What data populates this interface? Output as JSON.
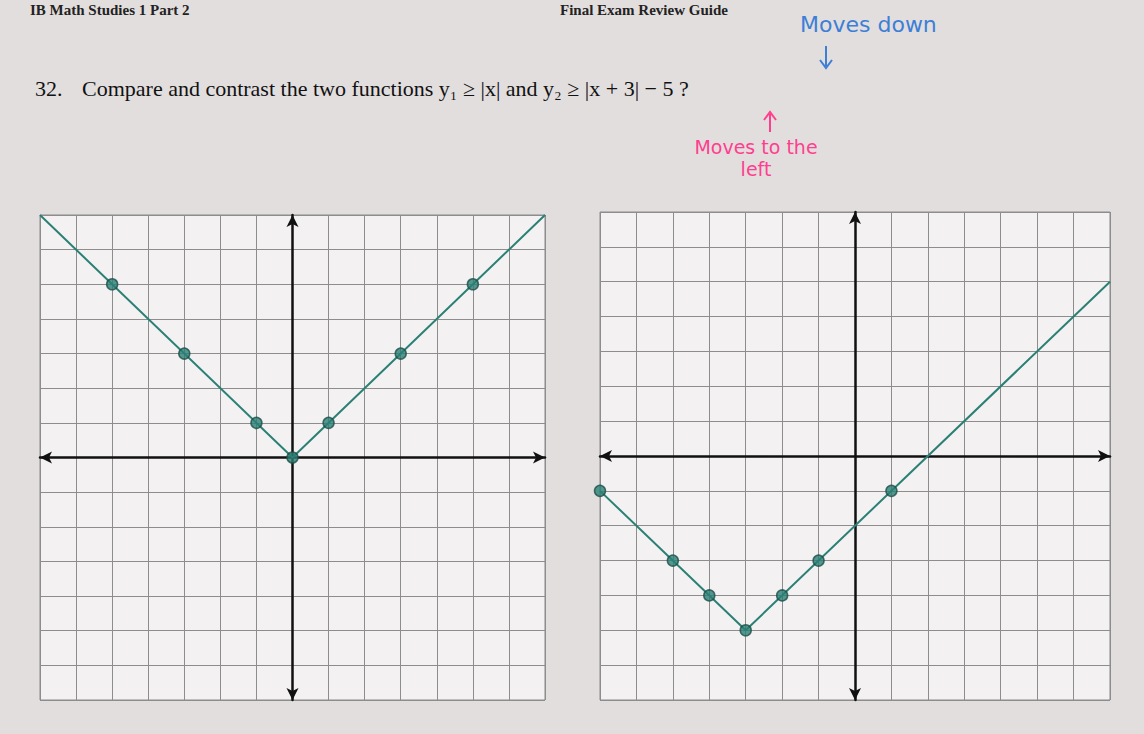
{
  "header": {
    "left": "IB Math Studies 1 Part 2",
    "right": "Final Exam Review Guide"
  },
  "question": {
    "number": "32.",
    "text": "Compare and contrast the two functions y₁ ≥ |x| and y₂ ≥ |x + 3| − 5 ?"
  },
  "annotations": [
    {
      "text": "Moves down",
      "color": "#3d7fd6"
    },
    {
      "text": "Moves to the left",
      "color": "#ff3f8e"
    }
  ],
  "chart_data": [
    {
      "type": "line",
      "xlim": [
        -7,
        7
      ],
      "ylim": [
        -7,
        7
      ],
      "xticks": [
        -7,
        -6,
        -5,
        -4,
        -3,
        -2,
        -1,
        0,
        1,
        2,
        3,
        4,
        5,
        6,
        7
      ],
      "yticks": [
        -7,
        -6,
        -5,
        -4,
        -3,
        -2,
        -1,
        0,
        1,
        2,
        3,
        4,
        5,
        6,
        7
      ],
      "grid": true,
      "tick_labels": false,
      "series": [
        {
          "type": "line",
          "color": "#2b8075",
          "line_style": "solid",
          "x": [
            -7,
            0,
            7
          ],
          "values": [
            7,
            0,
            7
          ]
        },
        {
          "type": "scatter",
          "color": "#2b8075",
          "marker": "circle",
          "x": [
            -5,
            -3,
            -1,
            0,
            1,
            3,
            5
          ],
          "values": [
            5,
            3,
            1,
            0,
            1,
            3,
            5
          ]
        }
      ]
    },
    {
      "type": "line",
      "xlim": [
        -7,
        7
      ],
      "ylim": [
        -7,
        7
      ],
      "xticks": [
        -7,
        -6,
        -5,
        -4,
        -3,
        -2,
        -1,
        0,
        1,
        2,
        3,
        4,
        5,
        6,
        7
      ],
      "yticks": [
        -7,
        -6,
        -5,
        -4,
        -3,
        -2,
        -1,
        0,
        1,
        2,
        3,
        4,
        5,
        6,
        7
      ],
      "grid": true,
      "tick_labels": false,
      "series": [
        {
          "type": "line",
          "color": "#2b8075",
          "line_style": "solid",
          "x": [
            -7,
            -3,
            7
          ],
          "values": [
            -1,
            -5,
            5
          ]
        },
        {
          "type": "scatter",
          "color": "#2b8075",
          "marker": "circle",
          "x": [
            -7,
            -5,
            -4,
            -3,
            -2,
            -1,
            1
          ],
          "values": [
            -1,
            -3,
            -4,
            -5,
            -4,
            -3,
            -1
          ]
        }
      ]
    }
  ]
}
